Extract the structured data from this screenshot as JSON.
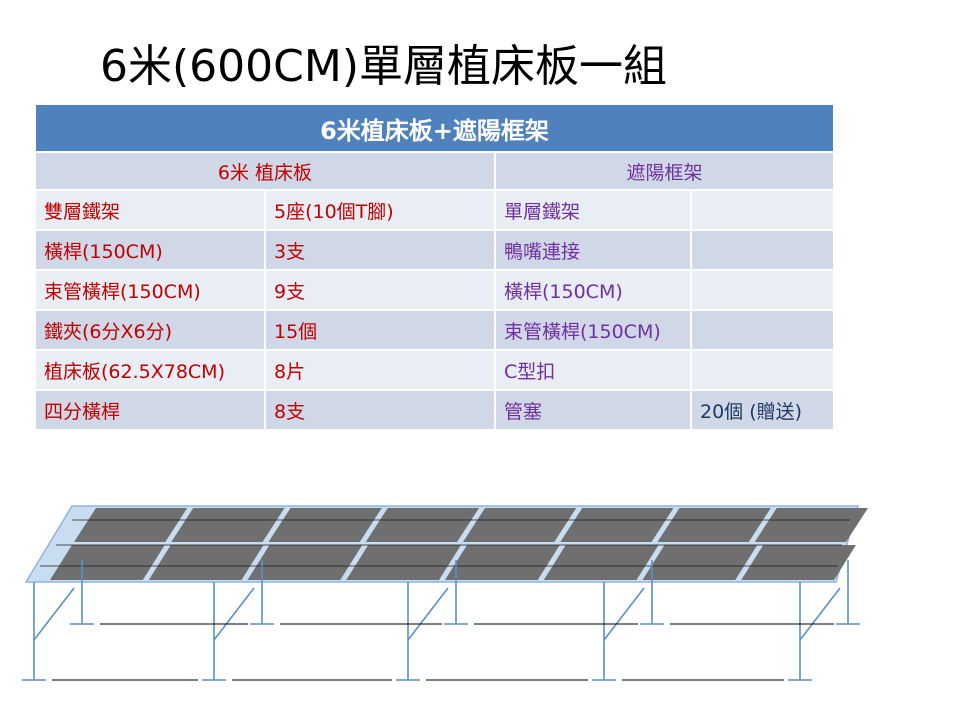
{
  "slide": {
    "title": "6米(600CM)單層植床板一組"
  },
  "table": {
    "header": "6米植床板+遮陽框架",
    "left_group": "6米 植床板",
    "right_group": "遮陽框架",
    "rows": [
      {
        "item": "雙層鐵架",
        "qty": "5座(10個T腳)",
        "right_item": "單層鐵架",
        "right_qty": ""
      },
      {
        "item": "橫桿(150CM)",
        "qty": "3支",
        "right_item": "鴨嘴連接",
        "right_qty": ""
      },
      {
        "item": "束管橫桿(150CM)",
        "qty": "9支",
        "right_item": "橫桿(150CM)",
        "right_qty": ""
      },
      {
        "item": "鐵夾(6分X6分)",
        "qty": "15個",
        "right_item": "束管橫桿(150CM)",
        "right_qty": ""
      },
      {
        "item": "植床板(62.5X78CM)",
        "qty": "8片",
        "right_item": "C型扣",
        "right_qty": ""
      },
      {
        "item": "四分橫桿",
        "qty": "8支",
        "right_item": "管塞",
        "right_qty": "20個 (贈送)"
      }
    ]
  },
  "colors": {
    "header_bg": "#4f81bd",
    "row_light": "#e9edf4",
    "row_dark": "#d0d8e8",
    "left_text": "#c00000",
    "right_text": "#7030a0",
    "frame": "#5b8fc7",
    "panel": "#6f6f6f"
  },
  "diagram": {
    "icon": "planting-bed-frame-illustration"
  }
}
